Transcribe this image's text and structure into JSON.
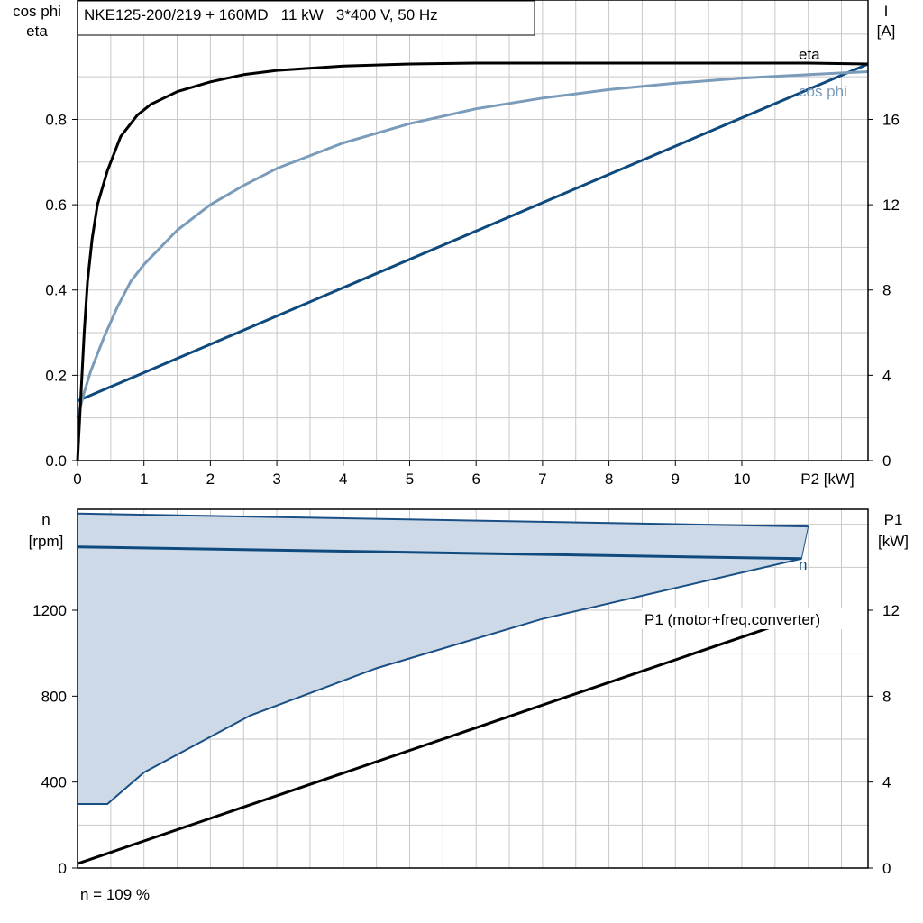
{
  "title_box": "NKE125-200/219 + 160MD   11 kW   3*400 V, 50 Hz",
  "footer_note": "n = 109 %",
  "colors": {
    "eta": "#000000",
    "cos_phi": "#7a9cba",
    "current": "#0e4a7e",
    "speed": "#0e4a7e",
    "band_fill": "#cdd9e6",
    "band_edge": "#1a4f86",
    "p1": "#000000",
    "grid": "#c8c8c8"
  },
  "chart_data": [
    {
      "type": "line",
      "x_unit_label": "P2 [kW]",
      "xlim": [
        0,
        11.9
      ],
      "x_ticks": [
        "0",
        "1",
        "2",
        "3",
        "4",
        "5",
        "6",
        "7",
        "8",
        "9",
        "10"
      ],
      "left_axis": {
        "label_line1": "cos phi",
        "label_line2": "eta",
        "ylim": [
          0,
          1.08
        ],
        "ticks": [
          "0.0",
          "0.2",
          "0.4",
          "0.6",
          "0.8"
        ]
      },
      "right_axis": {
        "label_line1": "I",
        "label_line2": "[A]",
        "ylim": [
          0,
          21.6
        ],
        "ticks": [
          "0",
          "4",
          "8",
          "12",
          "16"
        ]
      },
      "series": [
        {
          "name": "eta",
          "axis": "left",
          "key": "eta",
          "x": [
            0,
            0.05,
            0.1,
            0.15,
            0.22,
            0.3,
            0.45,
            0.65,
            0.9,
            1.1,
            1.3,
            1.5,
            2,
            2.5,
            3,
            4,
            5,
            6,
            7,
            8,
            9,
            10,
            11,
            11.9
          ],
          "y": [
            0.0,
            0.15,
            0.3,
            0.42,
            0.52,
            0.6,
            0.68,
            0.76,
            0.81,
            0.835,
            0.85,
            0.865,
            0.888,
            0.905,
            0.915,
            0.925,
            0.93,
            0.932,
            0.932,
            0.932,
            0.932,
            0.932,
            0.932,
            0.93
          ]
        },
        {
          "name": "cos phi",
          "axis": "left",
          "key": "cos_phi",
          "x": [
            0,
            0.1,
            0.2,
            0.4,
            0.6,
            0.8,
            1,
            1.5,
            2,
            2.5,
            3,
            4,
            5,
            6,
            7,
            8,
            9,
            10,
            11,
            11.9
          ],
          "y": [
            0.1,
            0.16,
            0.21,
            0.29,
            0.36,
            0.42,
            0.46,
            0.54,
            0.6,
            0.645,
            0.685,
            0.745,
            0.79,
            0.825,
            0.85,
            0.87,
            0.885,
            0.897,
            0.905,
            0.912
          ]
        },
        {
          "name": "I",
          "axis": "right",
          "key": "current",
          "x": [
            0,
            11.9
          ],
          "y": [
            2.8,
            18.6
          ]
        }
      ],
      "annotations": [
        {
          "text": "eta",
          "key": "eta"
        },
        {
          "text": "cos phi",
          "key": "cos_phi"
        }
      ]
    },
    {
      "type": "line",
      "xlim": [
        0,
        11.9
      ],
      "left_axis": {
        "label_line1": "n",
        "label_line2": "[rpm]",
        "ylim": [
          0,
          1670
        ],
        "ticks": [
          "0",
          "400",
          "800",
          "1200"
        ]
      },
      "right_axis": {
        "label_line1": "P1",
        "label_line2": "[kW]",
        "ylim": [
          0,
          16.7
        ],
        "ticks": [
          "0",
          "4",
          "8",
          "12"
        ]
      },
      "band": {
        "upper": {
          "x": [
            0,
            11.0
          ],
          "y": [
            1650,
            1590
          ]
        },
        "lower": {
          "x": [
            0,
            0.45,
            1.0,
            2.6,
            4.5,
            7.0,
            10.9
          ],
          "y": [
            298,
            298,
            445,
            710,
            930,
            1160,
            1440
          ]
        }
      },
      "series": [
        {
          "name": "n",
          "axis": "left",
          "key": "speed",
          "x": [
            0,
            10.9
          ],
          "y": [
            1495,
            1440
          ]
        },
        {
          "name": "P1 (motor+freq.converter)",
          "axis": "right",
          "key": "p1",
          "x": [
            0,
            10.9
          ],
          "y": [
            0.2,
            11.7
          ]
        }
      ],
      "annotations": [
        {
          "text": "n",
          "key": "speed"
        },
        {
          "text": "P1 (motor+freq.converter)",
          "key": "p1"
        }
      ]
    }
  ]
}
